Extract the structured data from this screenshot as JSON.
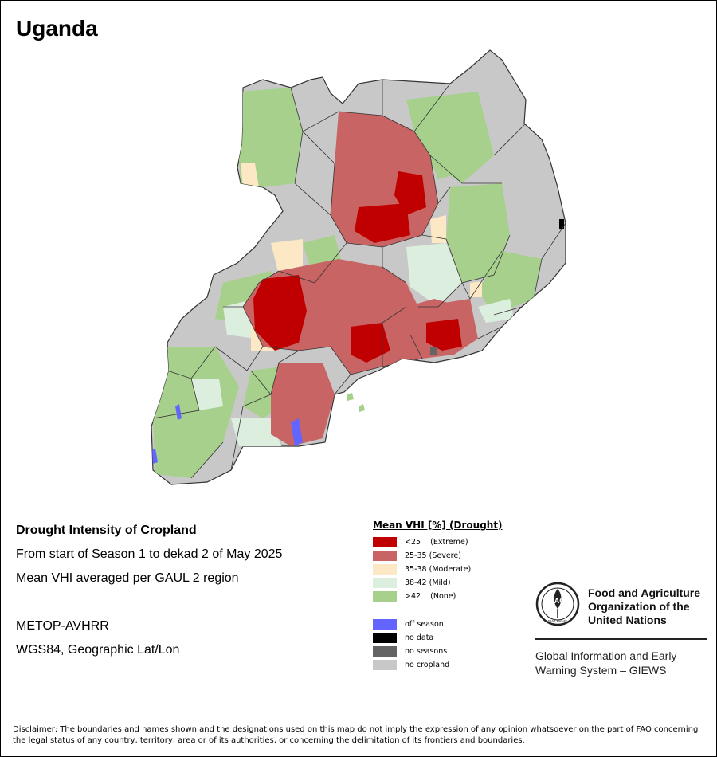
{
  "map_title": "Uganda",
  "info": {
    "heading": "Drought Intensity of Cropland",
    "period": "From start of Season 1 to dekad 2 of May 2025",
    "method": "Mean VHI averaged per GAUL 2 region",
    "sensor": "METOP-AVHRR",
    "projection": "WGS84, Geographic Lat/Lon"
  },
  "legend": {
    "title": "Mean VHI [%] (Drought)",
    "classes": [
      {
        "label": "<25    (Extreme)",
        "color": "#c00000"
      },
      {
        "label": "25-35 (Severe)",
        "color": "#c86464"
      },
      {
        "label": "35-38 (Moderate)",
        "color": "#fce8c4"
      },
      {
        "label": "38-42 (Mild)",
        "color": "#dceedd"
      },
      {
        "label": ">42    (None)",
        "color": "#a6d08c"
      }
    ],
    "other": [
      {
        "label": "off season",
        "color": "#6464ff"
      },
      {
        "label": "no data",
        "color": "#000000"
      },
      {
        "label": "no seasons",
        "color": "#646464"
      },
      {
        "label": "no cropland",
        "color": "#c8c8c8"
      }
    ]
  },
  "organization": {
    "name_line1": "Food and Agriculture",
    "name_line2": "Organization of the",
    "name_line3": "United Nations",
    "logo_text": "FAO",
    "logo_motto": "FIAT PANIS",
    "system_line1": "Global Information and Early",
    "system_line2": "Warning System – GIEWS"
  },
  "disclaimer": "Disclaimer: The boundaries and names shown and the designations used on this map do not imply the expression of any opinion whatsoever on the part of FAO concerning the legal status of any country, territory, area or of its authorities, or concerning the delimitation of its frontiers and boundaries.",
  "colors": {
    "extreme": "#c00000",
    "severe": "#c86464",
    "moderate": "#fce8c4",
    "mild": "#dceedd",
    "none": "#a6d08c",
    "no_cropland": "#c8c8c8",
    "off_season": "#6464ff",
    "no_data": "#000000",
    "boundary": "#333333"
  }
}
